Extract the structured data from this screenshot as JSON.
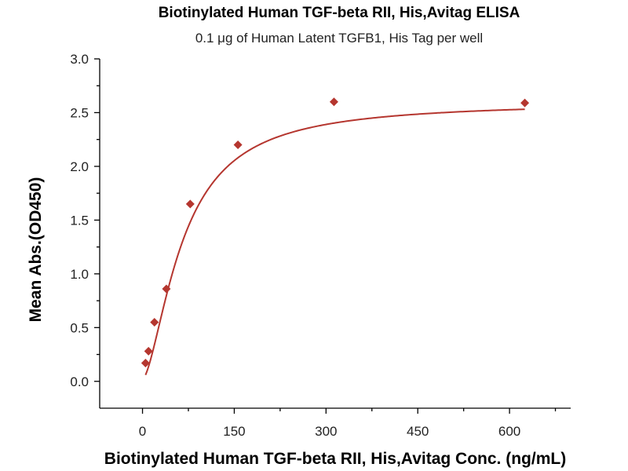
{
  "chart_data": {
    "type": "scatter",
    "title": "Biotinylated Human TGF-beta RII, His,Avitag ELISA",
    "subtitle": "0.1 μg of Human Latent TGFB1, His Tag per well",
    "xlabel": "Biotinylated Human TGF-beta RII, His,Avitag Conc. (ng/mL)",
    "ylabel": "Mean Abs.(OD450)",
    "xlim": [
      -70,
      700
    ],
    "ylim": [
      -0.25,
      3.0
    ],
    "xticks": [
      0,
      150,
      300,
      450,
      600
    ],
    "xtick_labels": [
      "0",
      "150",
      "300",
      "450",
      "600"
    ],
    "yticks": [
      0.0,
      0.5,
      1.0,
      1.5,
      2.0,
      2.5,
      3.0
    ],
    "ytick_labels": [
      "0.0",
      "0.5",
      "1.0",
      "1.5",
      "2.0",
      "2.5",
      "3.0"
    ],
    "grid": false,
    "marker": "diamond",
    "color": "#b5362f",
    "x": [
      4.9,
      9.8,
      19.5,
      39,
      78,
      156,
      313,
      625
    ],
    "y": [
      0.17,
      0.28,
      0.55,
      0.86,
      1.65,
      2.2,
      2.6,
      2.59
    ],
    "fit_curve": true
  }
}
